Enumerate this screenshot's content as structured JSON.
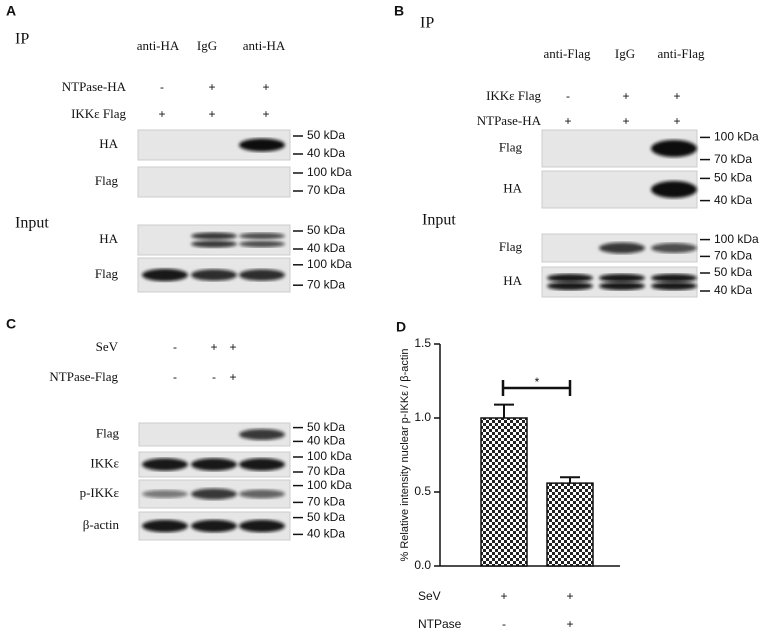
{
  "panels": [
    {
      "letter": "A",
      "ip_label": "IP",
      "columns": [
        "anti-HA",
        "IgG",
        "anti-HA"
      ],
      "conditions": [
        {
          "label": "NTPase-HA",
          "marks": [
            "-",
            "+",
            "+"
          ]
        },
        {
          "label": "IKKε Flag",
          "marks": [
            "+",
            "+",
            "+"
          ]
        }
      ],
      "blots": [
        {
          "label": "HA",
          "markers": [
            "50 kDa",
            "40 kDa"
          ]
        },
        {
          "label": "Flag",
          "markers": [
            "100 kDa",
            "70 kDa"
          ]
        }
      ],
      "input_label": "Input",
      "input_blots": [
        {
          "label": "HA",
          "markers": [
            "50 kDa",
            "40 kDa"
          ]
        },
        {
          "label": "Flag",
          "markers": [
            "100 kDa",
            "70 kDa"
          ]
        }
      ]
    },
    {
      "letter": "B",
      "ip_label": "IP",
      "columns": [
        "anti-Flag",
        "IgG",
        "anti-Flag"
      ],
      "conditions": [
        {
          "label": "IKKε Flag",
          "marks": [
            "-",
            "+",
            "+"
          ]
        },
        {
          "label": "NTPase-HA",
          "marks": [
            "+",
            "+",
            "+"
          ]
        }
      ],
      "blots": [
        {
          "label": "Flag",
          "markers": [
            "100 kDa",
            "70 kDa"
          ]
        },
        {
          "label": "HA",
          "markers": [
            "50 kDa",
            "40 kDa"
          ]
        }
      ],
      "input_label": "Input",
      "input_blots": [
        {
          "label": "Flag",
          "markers": [
            "100 kDa",
            "70 kDa"
          ]
        },
        {
          "label": "HA",
          "markers": [
            "50 kDa",
            "40 kDa"
          ]
        }
      ]
    },
    {
      "letter": "C",
      "conditions": [
        {
          "label": "SeV",
          "marks": [
            "-",
            "+",
            "+"
          ]
        },
        {
          "label": "NTPase-Flag",
          "marks": [
            "-",
            "-",
            "+"
          ]
        }
      ],
      "blots": [
        {
          "label": "Flag",
          "markers": [
            "50 kDa",
            "40 kDa"
          ]
        },
        {
          "label": "IKKε",
          "markers": [
            "100 kDa",
            "70 kDa"
          ]
        },
        {
          "label": "p-IKKε",
          "markers": [
            "100 kDa",
            "70 kDa"
          ]
        },
        {
          "label": "β-actin",
          "markers": [
            "50 kDa",
            "40 kDa"
          ]
        }
      ]
    }
  ],
  "chart_data": {
    "type": "bar",
    "letter": "D",
    "y_label": "% Relative intensity nuclear p-IKKε / β-actin",
    "values": [
      1.0,
      0.56
    ],
    "errors": [
      0.09,
      0.04
    ],
    "ylim": [
      0,
      1.5
    ],
    "yticks": [
      {
        "value": 0,
        "label": "0.0"
      },
      0.5,
      {
        "value": 1,
        "label": "1.0"
      },
      1.5
    ],
    "annotation": "*",
    "conditions": [
      {
        "label": "SeV",
        "marks": [
          "+",
          "+"
        ]
      },
      {
        "label": "NTPase",
        "marks": [
          "-",
          "+"
        ]
      }
    ]
  }
}
